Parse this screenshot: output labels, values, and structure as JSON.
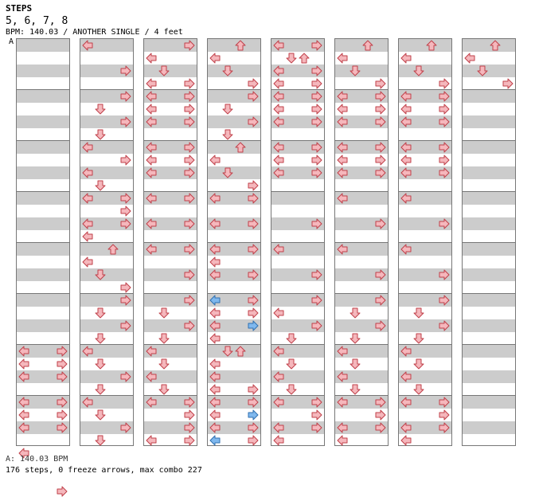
{
  "header": {
    "title": "STEPS",
    "levels": "5, 6, 7, 8",
    "info": "BPM: 140.03 / ANOTHER SINGLE / 4 feet",
    "marker": "A"
  },
  "footer": {
    "bpm_line": "A: 140.03 BPM",
    "summary": "176 steps, 0 freeze arrows, max combo 227"
  },
  "colors": {
    "note": "#f5b7bc",
    "note_stroke": "#c0404a",
    "alt_note": "#7fb8ee",
    "alt_stroke": "#3070b0",
    "band": "#cccccc"
  },
  "columns": [
    {
      "measures": [
        [],
        [],
        [],
        [],
        [],
        [],
        [
          [
            0,
            "L"
          ],
          [
            0,
            "R"
          ],
          [
            1,
            "L"
          ],
          [
            1,
            "R"
          ],
          [
            2,
            "L"
          ],
          [
            2,
            "R"
          ]
        ],
        [
          [
            0,
            "L"
          ],
          [
            0,
            "R"
          ],
          [
            1,
            "L"
          ],
          [
            1,
            "R"
          ],
          [
            2,
            "L"
          ],
          [
            2,
            "R"
          ]
        ],
        [
          [
            0,
            "L"
          ],
          [
            3,
            "R"
          ]
        ]
      ]
    },
    {
      "measures": [
        [
          [
            0,
            "L"
          ],
          [
            2,
            "R"
          ]
        ],
        [
          [
            0,
            "R"
          ],
          [
            1,
            "D"
          ],
          [
            2,
            "R"
          ],
          [
            3,
            "D"
          ]
        ],
        [
          [
            0,
            "L"
          ],
          [
            1,
            "R"
          ],
          [
            2,
            "L"
          ],
          [
            3,
            "D"
          ]
        ],
        [
          [
            0,
            "L"
          ],
          [
            0,
            "R"
          ],
          [
            1,
            "R"
          ],
          [
            2,
            "L"
          ],
          [
            2,
            "R"
          ],
          [
            3,
            "L"
          ]
        ],
        [
          [
            0,
            "U"
          ],
          [
            1,
            "L"
          ],
          [
            2,
            "D"
          ],
          [
            3,
            "R"
          ]
        ],
        [
          [
            0,
            "R"
          ],
          [
            1,
            "D"
          ],
          [
            2,
            "R"
          ],
          [
            3,
            "D"
          ]
        ],
        [
          [
            0,
            "L"
          ],
          [
            1,
            "D"
          ],
          [
            2,
            "R"
          ],
          [
            3,
            "D"
          ]
        ],
        [
          [
            0,
            "L"
          ],
          [
            1,
            "D"
          ],
          [
            2,
            "R"
          ],
          [
            3,
            "D"
          ]
        ]
      ]
    },
    {
      "measures": [
        [
          [
            0,
            "R"
          ],
          [
            1,
            "L"
          ],
          [
            2,
            "D"
          ],
          [
            3,
            "L"
          ],
          [
            3,
            "R"
          ]
        ],
        [
          [
            0,
            "L"
          ],
          [
            0,
            "R"
          ],
          [
            1,
            "L"
          ],
          [
            1,
            "R"
          ],
          [
            2,
            "L"
          ],
          [
            2,
            "R"
          ]
        ],
        [
          [
            0,
            "L"
          ],
          [
            0,
            "R"
          ],
          [
            1,
            "L"
          ],
          [
            1,
            "R"
          ],
          [
            2,
            "L"
          ],
          [
            2,
            "R"
          ]
        ],
        [
          [
            0,
            "L"
          ],
          [
            0,
            "R"
          ],
          [
            2,
            "L"
          ],
          [
            2,
            "R"
          ]
        ],
        [
          [
            0,
            "L"
          ],
          [
            0,
            "R"
          ],
          [
            2,
            "R"
          ]
        ],
        [
          [
            0,
            "R"
          ],
          [
            1,
            "D"
          ],
          [
            2,
            "R"
          ],
          [
            3,
            "D"
          ]
        ],
        [
          [
            0,
            "L"
          ],
          [
            1,
            "D"
          ],
          [
            2,
            "L"
          ],
          [
            3,
            "D"
          ]
        ],
        [
          [
            0,
            "L"
          ],
          [
            0,
            "R"
          ],
          [
            1,
            "R"
          ],
          [
            2,
            "R"
          ],
          [
            3,
            "L"
          ],
          [
            3,
            "R"
          ]
        ]
      ]
    },
    {
      "measures": [
        [
          [
            0,
            "U"
          ],
          [
            1,
            "L"
          ],
          [
            2,
            "D"
          ],
          [
            3,
            "R"
          ]
        ],
        [
          [
            0,
            "R"
          ],
          [
            1,
            "D"
          ],
          [
            2,
            "R"
          ],
          [
            3,
            "D"
          ]
        ],
        [
          [
            0,
            "U"
          ],
          [
            1,
            "L"
          ],
          [
            2,
            "D"
          ],
          [
            3,
            "R"
          ]
        ],
        [
          [
            0,
            "L"
          ],
          [
            0,
            "R"
          ],
          [
            2,
            "L"
          ],
          [
            2,
            "R"
          ]
        ],
        [
          [
            0,
            "L"
          ],
          [
            0,
            "R"
          ],
          [
            1,
            "L"
          ],
          [
            2,
            "L"
          ],
          [
            2,
            "R"
          ]
        ],
        [
          [
            0,
            "L",
            "b"
          ],
          [
            0,
            "R"
          ],
          [
            1,
            "L"
          ],
          [
            1,
            "R"
          ],
          [
            2,
            "L"
          ],
          [
            2,
            "R",
            "b"
          ],
          [
            3,
            "L"
          ]
        ],
        [
          [
            0,
            "D"
          ],
          [
            0,
            "U"
          ],
          [
            1,
            "L"
          ],
          [
            2,
            "L"
          ],
          [
            3,
            "L"
          ],
          [
            3,
            "R"
          ]
        ],
        [
          [
            0,
            "L"
          ],
          [
            0,
            "R"
          ],
          [
            1,
            "L"
          ],
          [
            1,
            "R",
            "b"
          ],
          [
            2,
            "L"
          ],
          [
            2,
            "R"
          ],
          [
            3,
            "L",
            "b"
          ],
          [
            3,
            "R"
          ]
        ]
      ]
    },
    {
      "measures": [
        [
          [
            0,
            "L"
          ],
          [
            0,
            "R"
          ],
          [
            1,
            "D"
          ],
          [
            1,
            "U"
          ],
          [
            2,
            "L"
          ],
          [
            2,
            "R"
          ],
          [
            3,
            "L"
          ],
          [
            3,
            "R"
          ]
        ],
        [
          [
            0,
            "L"
          ],
          [
            0,
            "R"
          ],
          [
            1,
            "L"
          ],
          [
            1,
            "R"
          ],
          [
            2,
            "L"
          ],
          [
            2,
            "R"
          ]
        ],
        [
          [
            0,
            "L"
          ],
          [
            0,
            "R"
          ],
          [
            1,
            "L"
          ],
          [
            1,
            "R"
          ],
          [
            2,
            "L"
          ],
          [
            2,
            "R"
          ]
        ],
        [
          [
            2,
            "R"
          ]
        ],
        [
          [
            0,
            "L"
          ],
          [
            2,
            "R"
          ]
        ],
        [
          [
            0,
            "R"
          ],
          [
            1,
            "L"
          ],
          [
            2,
            "R"
          ],
          [
            3,
            "D"
          ]
        ],
        [
          [
            0,
            "L"
          ],
          [
            1,
            "D"
          ],
          [
            2,
            "L"
          ],
          [
            3,
            "D"
          ]
        ],
        [
          [
            0,
            "L"
          ],
          [
            0,
            "R"
          ],
          [
            1,
            "R"
          ],
          [
            2,
            "L"
          ],
          [
            2,
            "R"
          ],
          [
            3,
            "L"
          ]
        ]
      ]
    },
    {
      "measures": [
        [
          [
            0,
            "U"
          ],
          [
            1,
            "L"
          ],
          [
            2,
            "D"
          ],
          [
            3,
            "R"
          ]
        ],
        [
          [
            0,
            "L"
          ],
          [
            0,
            "R"
          ],
          [
            1,
            "L"
          ],
          [
            1,
            "R"
          ],
          [
            2,
            "L"
          ],
          [
            2,
            "R"
          ]
        ],
        [
          [
            0,
            "L"
          ],
          [
            0,
            "R"
          ],
          [
            1,
            "L"
          ],
          [
            1,
            "R"
          ],
          [
            2,
            "L"
          ],
          [
            2,
            "R"
          ]
        ],
        [
          [
            0,
            "L"
          ],
          [
            2,
            "R"
          ]
        ],
        [
          [
            0,
            "L"
          ],
          [
            2,
            "R"
          ]
        ],
        [
          [
            0,
            "R"
          ],
          [
            1,
            "D"
          ],
          [
            2,
            "R"
          ],
          [
            3,
            "D"
          ]
        ],
        [
          [
            0,
            "L"
          ],
          [
            1,
            "D"
          ],
          [
            2,
            "L"
          ],
          [
            3,
            "D"
          ]
        ],
        [
          [
            0,
            "L"
          ],
          [
            0,
            "R"
          ],
          [
            1,
            "R"
          ],
          [
            2,
            "L"
          ],
          [
            2,
            "R"
          ],
          [
            3,
            "L"
          ]
        ]
      ]
    },
    {
      "measures": [
        [
          [
            0,
            "U"
          ],
          [
            1,
            "L"
          ],
          [
            2,
            "D"
          ],
          [
            3,
            "R"
          ]
        ],
        [
          [
            0,
            "L"
          ],
          [
            0,
            "R"
          ],
          [
            1,
            "L"
          ],
          [
            1,
            "R"
          ],
          [
            2,
            "L"
          ],
          [
            2,
            "R"
          ]
        ],
        [
          [
            0,
            "L"
          ],
          [
            0,
            "R"
          ],
          [
            1,
            "L"
          ],
          [
            1,
            "R"
          ],
          [
            2,
            "L"
          ],
          [
            2,
            "R"
          ]
        ],
        [
          [
            0,
            "L"
          ],
          [
            2,
            "R"
          ]
        ],
        [
          [
            0,
            "L"
          ],
          [
            2,
            "R"
          ]
        ],
        [
          [
            0,
            "R"
          ],
          [
            1,
            "D"
          ],
          [
            2,
            "R"
          ],
          [
            3,
            "D"
          ]
        ],
        [
          [
            0,
            "L"
          ],
          [
            1,
            "D"
          ],
          [
            2,
            "L"
          ],
          [
            3,
            "D"
          ]
        ],
        [
          [
            0,
            "L"
          ],
          [
            0,
            "R"
          ],
          [
            1,
            "R"
          ],
          [
            2,
            "L"
          ],
          [
            2,
            "R"
          ],
          [
            3,
            "L"
          ]
        ]
      ]
    },
    {
      "measures": [
        [
          [
            0,
            "U"
          ],
          [
            1,
            "L"
          ],
          [
            2,
            "D"
          ],
          [
            3,
            "R"
          ]
        ],
        [],
        [],
        [],
        [],
        [],
        [],
        []
      ]
    }
  ]
}
